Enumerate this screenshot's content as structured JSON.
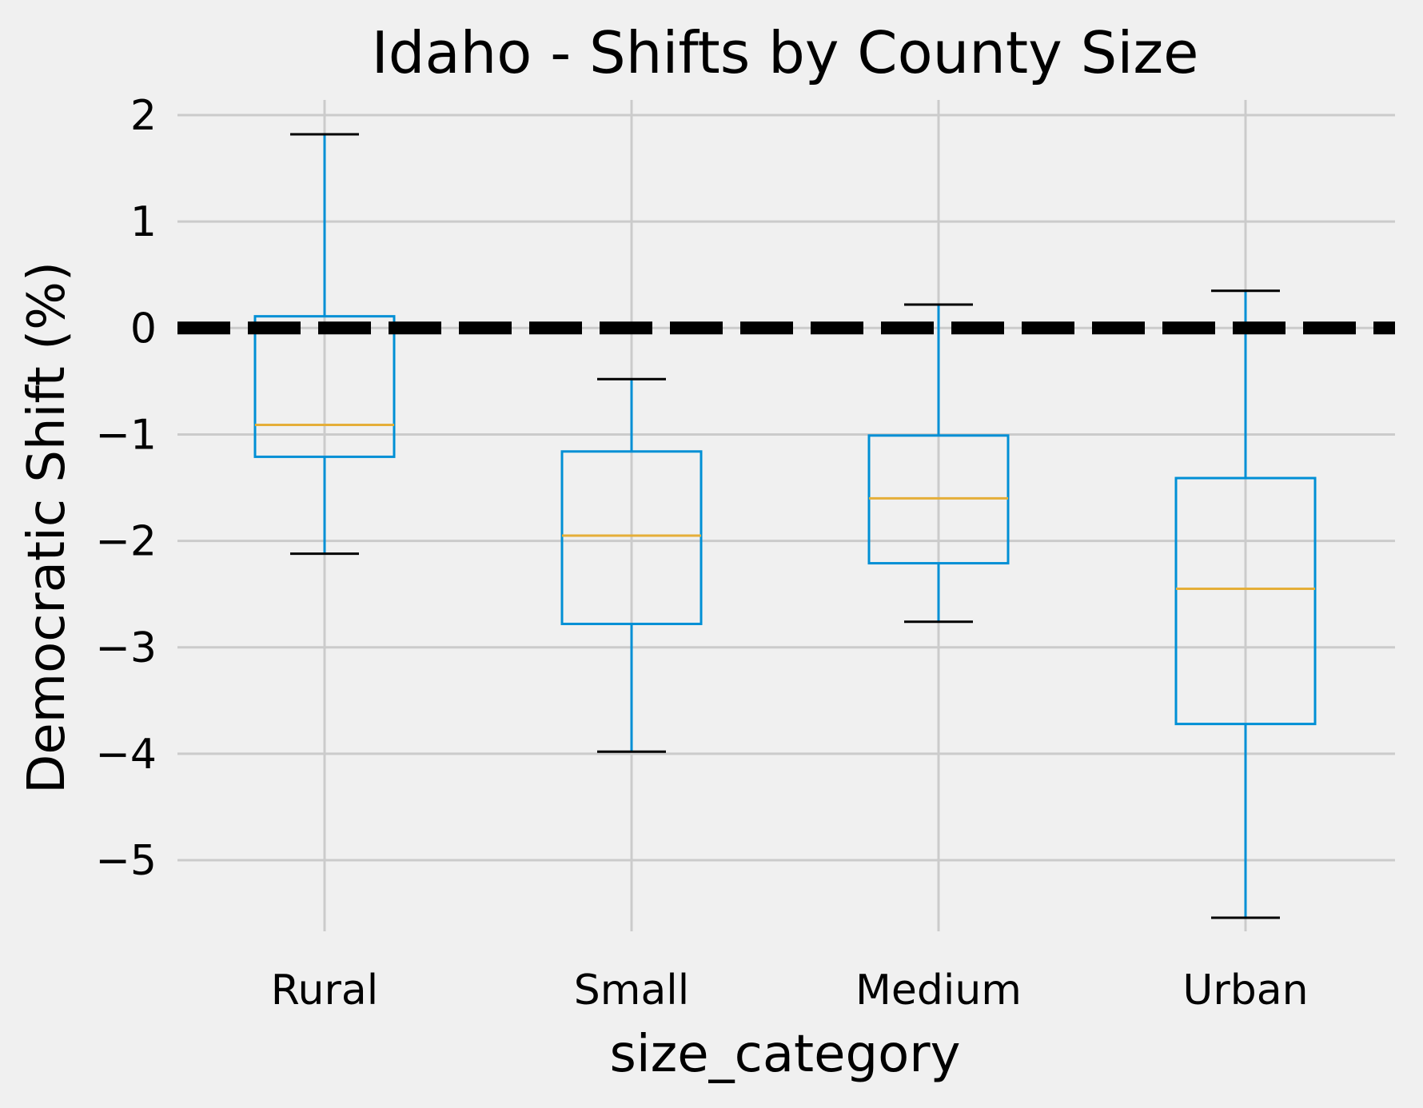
{
  "chart_data": {
    "type": "box",
    "title": "Idaho - Shifts by County Size",
    "xlabel": "size_category",
    "ylabel": "Democratic Shift (%)",
    "categories": [
      "Rural",
      "Small",
      "Medium",
      "Urban"
    ],
    "boxes": [
      {
        "name": "Rural",
        "whisker_low": -2.12,
        "q1": -1.21,
        "median": -0.91,
        "q3": 0.11,
        "whisker_high": 1.82
      },
      {
        "name": "Small",
        "whisker_low": -3.98,
        "q1": -2.78,
        "median": -1.95,
        "q3": -1.16,
        "whisker_high": -0.48
      },
      {
        "name": "Medium",
        "whisker_low": -2.76,
        "q1": -2.21,
        "median": -1.6,
        "q3": -1.01,
        "whisker_high": 0.22
      },
      {
        "name": "Urban",
        "whisker_low": -5.54,
        "q1": -3.72,
        "median": -2.45,
        "q3": -1.41,
        "whisker_high": 0.35
      }
    ],
    "reference_line": {
      "y": 0,
      "style": "dashed",
      "color": "#000000"
    },
    "yticks": [
      2,
      1,
      0,
      -1,
      -2,
      -3,
      -4,
      -5
    ],
    "ytick_labels": [
      "2",
      "1",
      "0",
      "−1",
      "−2",
      "−3",
      "−4",
      "−5"
    ],
    "ylim": [
      -5.8,
      2.15
    ],
    "grid": true,
    "colors": {
      "box": "#008fd5",
      "median": "#e5ae38",
      "cap": "#000000",
      "grid": "#cbcbcb",
      "background": "#f0f0f0"
    }
  }
}
